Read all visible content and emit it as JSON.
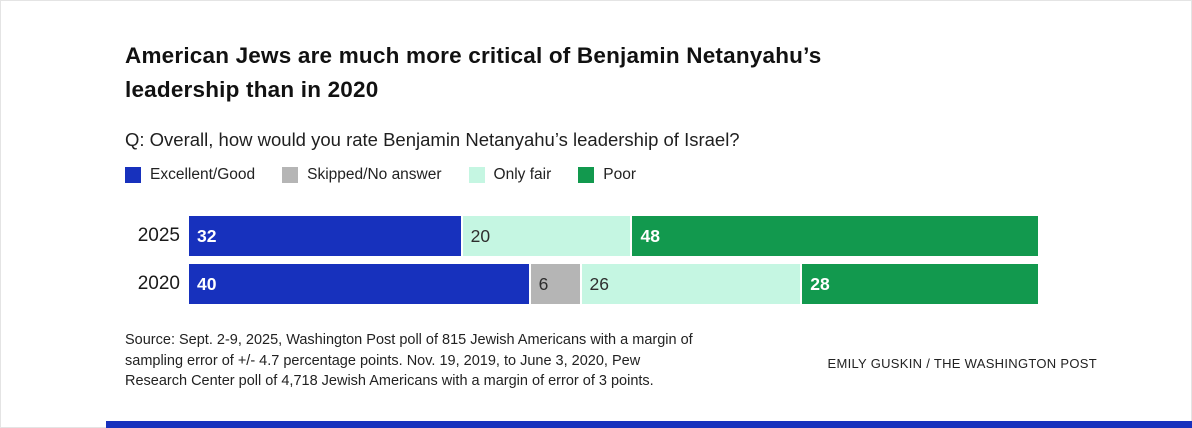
{
  "header": {
    "title_lines": [
      "American Jews are much more critical of Benjamin Netanyahu’s",
      "leadership than in 2020"
    ],
    "question": "Q: Overall, how would you rate Benjamin Netanyahu’s leadership of Israel?"
  },
  "chart_data": {
    "type": "bar",
    "stacked": true,
    "orientation": "horizontal",
    "unit": "percent",
    "xlim": [
      0,
      100
    ],
    "value_labels_shown": true,
    "legend_position": "top",
    "categories": [
      "2025",
      "2020"
    ],
    "series": [
      {
        "name": "Excellent/Good",
        "color": "#1731bd",
        "label_color": "#ffffff",
        "values": [
          32,
          40
        ]
      },
      {
        "name": "Skipped/No answer",
        "color": "#b5b5b5",
        "label_color": "#2e2e2e",
        "values": [
          0,
          6
        ]
      },
      {
        "name": "Only fair",
        "color": "#c5f6e2",
        "label_color": "#2e2e2e",
        "values": [
          20,
          26
        ]
      },
      {
        "name": "Poor",
        "color": "#12994e",
        "label_color": "#ffffff",
        "values": [
          48,
          28
        ]
      }
    ]
  },
  "footer": {
    "source_lines": [
      "Source: Sept. 2-9, 2025, Washington Post poll of 815 Jewish Americans with a margin of",
      "sampling error of +/- 4.7 percentage points. Nov. 19, 2019, to June 3, 2020, Pew",
      "Research Center poll of 4,718 Jewish Americans with a margin of error of 3 points."
    ],
    "credit": "EMILY GUSKIN / THE WASHINGTON POST"
  },
  "partial_next_chart": {
    "visible": true,
    "color": "#1731bd"
  }
}
